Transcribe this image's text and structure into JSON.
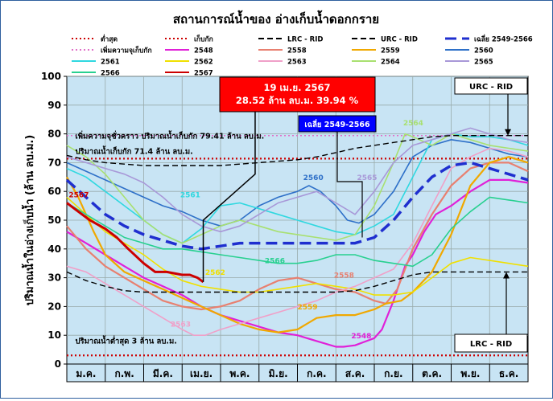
{
  "chart_data": {
    "type": "line",
    "title": "สถานการณ์น้ำของ อ่างเก็บน้ำดอกกราย",
    "ylabel": "ปริมาณน้ำในอ่างเก็บน้ำ (ล้าน ลบ.ม.)",
    "xlabel": "",
    "categories": [
      "ม.ค.",
      "ก.พ.",
      "มี.ค.",
      "เม.ย.",
      "พ.ค.",
      "มิ.ย.",
      "ก.ค.",
      "ส.ค.",
      "ก.ย.",
      "ต.ค.",
      "พ.ย.",
      "ธ.ค."
    ],
    "x_range": [
      0,
      12
    ],
    "ylim": [
      0,
      100
    ],
    "yticks": [
      "0",
      "10",
      "20",
      "30",
      "40",
      "50",
      "60",
      "70",
      "80",
      "90",
      "100"
    ],
    "grid": true,
    "legend_position": "top",
    "legend": [
      {
        "label": "ต่ำสุด",
        "color": "#cc0000",
        "style": "dotted"
      },
      {
        "label": "เก็บกัก",
        "color": "#cc0000",
        "style": "dotted"
      },
      {
        "label": "LRC - RID",
        "color": "#000000",
        "style": "dashed"
      },
      {
        "label": "URC - RID",
        "color": "#000000",
        "style": "dashed"
      },
      {
        "label": "เฉลี่ย 2549-2566",
        "color": "#1f2fcf",
        "style": "longdash"
      },
      {
        "label": "เพิ่มความจุเก็บกัก",
        "color": "#e070c8",
        "style": "dotted"
      },
      {
        "label": "2548",
        "color": "#e020d8",
        "style": "solid"
      },
      {
        "label": "2558",
        "color": "#e88070",
        "style": "solid"
      },
      {
        "label": "2559",
        "color": "#f0a800",
        "style": "solid"
      },
      {
        "label": "2560",
        "color": "#2e70c8",
        "style": "solid"
      },
      {
        "label": "2561",
        "color": "#30d8e0",
        "style": "solid"
      },
      {
        "label": "2562",
        "color": "#f0e000",
        "style": "solid"
      },
      {
        "label": "2563",
        "color": "#f0a0c8",
        "style": "solid"
      },
      {
        "label": "2564",
        "color": "#a8e070",
        "style": "solid"
      },
      {
        "label": "2565",
        "color": "#a898d8",
        "style": "solid"
      },
      {
        "label": "2566",
        "color": "#28d090",
        "style": "solid"
      },
      {
        "label": "2567",
        "color": "#cc0000",
        "style": "solid"
      }
    ],
    "reference_lines": {
      "min": 3,
      "storage": 71.4,
      "increased_storage": 79.41
    },
    "series": [
      {
        "name": "2548",
        "x": [
          0,
          0.5,
          1,
          1.5,
          2,
          2.5,
          3,
          3.5,
          4,
          4.5,
          5,
          5.5,
          6,
          6.5,
          7,
          7.2,
          7.5,
          7.8,
          8,
          8.2,
          8.5,
          8.8,
          9,
          9.3,
          9.6,
          10,
          10.5,
          11,
          11.5,
          12
        ],
        "y": [
          46,
          42,
          38,
          34,
          30,
          27,
          24,
          20,
          17,
          15,
          13,
          11,
          10,
          8,
          6,
          6,
          6.5,
          8,
          9,
          12,
          22,
          34,
          38,
          46,
          52,
          55,
          60,
          64,
          64,
          63
        ]
      },
      {
        "name": "2558",
        "x": [
          0,
          0.5,
          1,
          1.5,
          2,
          2.5,
          3,
          3.5,
          4,
          4.5,
          5,
          5.5,
          6,
          6.5,
          7,
          7.5,
          8,
          8.3,
          8.6,
          9,
          9.5,
          10,
          10.5,
          11,
          11.5,
          12
        ],
        "y": [
          48,
          40,
          34,
          30,
          26,
          22,
          20,
          19,
          20,
          22,
          26,
          29,
          30,
          28,
          26,
          25,
          22,
          21,
          26,
          40,
          52,
          62,
          68,
          70,
          70,
          67
        ]
      },
      {
        "name": "2559",
        "x": [
          0,
          0.3,
          0.7,
          1,
          1.5,
          2,
          2.5,
          3,
          3.5,
          4,
          4.5,
          5,
          5.5,
          6,
          6.5,
          7,
          7.5,
          8,
          8.3,
          8.7,
          9,
          9.5,
          10,
          10.5,
          11,
          11.5,
          12
        ],
        "y": [
          65,
          58,
          46,
          38,
          32,
          29,
          26,
          23,
          20,
          17,
          14,
          12,
          11,
          12,
          16,
          17,
          17,
          19,
          21,
          22,
          25,
          32,
          45,
          62,
          70,
          72,
          70
        ]
      },
      {
        "name": "2560",
        "x": [
          0,
          0.5,
          1,
          1.5,
          2,
          2.5,
          3,
          3.5,
          4,
          4.5,
          5,
          5.5,
          6,
          6.3,
          6.6,
          7,
          7.3,
          7.6,
          8,
          8.5,
          9,
          9.5,
          10,
          10.5,
          11,
          11.5,
          12
        ],
        "y": [
          70,
          67,
          64,
          61,
          58,
          55,
          53,
          50,
          48,
          50,
          55,
          58,
          60,
          62,
          60,
          55,
          50,
          49,
          52,
          60,
          72,
          76,
          78,
          77,
          75,
          73,
          72
        ]
      },
      {
        "name": "2561",
        "x": [
          0,
          0.5,
          1,
          1.5,
          2,
          2.5,
          3,
          3.5,
          4,
          4.5,
          5,
          5.5,
          6,
          6.5,
          7,
          7.5,
          8,
          8.5,
          9,
          9.5,
          10,
          10.5,
          11,
          11.5,
          12
        ],
        "y": [
          68,
          65,
          60,
          55,
          50,
          45,
          42,
          47,
          55,
          56,
          54,
          52,
          50,
          48,
          46,
          45,
          48,
          52,
          65,
          78,
          80,
          79,
          79,
          78,
          76
        ]
      },
      {
        "name": "2562",
        "x": [
          0,
          0.5,
          1,
          1.5,
          2,
          2.5,
          3,
          3.5,
          4,
          4.5,
          5,
          5.5,
          6,
          6.5,
          7,
          7.5,
          8,
          8.5,
          9,
          9.5,
          10,
          10.5,
          11,
          11.5,
          12
        ],
        "y": [
          58,
          52,
          46,
          42,
          38,
          33,
          29,
          27,
          26,
          25,
          25,
          26,
          27,
          28,
          27,
          26,
          24,
          24,
          25,
          30,
          35,
          37,
          36,
          35,
          34
        ]
      },
      {
        "name": "2563",
        "x": [
          0,
          0.5,
          1,
          1.5,
          2,
          2.5,
          3,
          3.3,
          3.6,
          4,
          4.5,
          5,
          5.5,
          6,
          6.5,
          7,
          7.5,
          8,
          8.5,
          9,
          9.5,
          10,
          10.5,
          11,
          11.5,
          12
        ],
        "y": [
          34,
          32,
          28,
          24,
          20,
          16,
          12,
          10,
          10,
          12,
          14,
          16,
          18,
          20,
          22,
          25,
          27,
          30,
          33,
          42,
          55,
          68,
          72,
          75,
          74,
          72
        ]
      },
      {
        "name": "2564",
        "x": [
          0,
          0.5,
          1,
          1.5,
          2,
          2.5,
          3,
          3.5,
          4,
          4.5,
          5,
          5.5,
          6,
          6.5,
          7,
          7.5,
          8,
          8.5,
          8.8,
          9,
          9.5,
          10,
          10.5,
          11,
          11.5,
          12
        ],
        "y": [
          76,
          72,
          66,
          58,
          50,
          45,
          42,
          45,
          48,
          50,
          48,
          46,
          45,
          44,
          43,
          45,
          55,
          70,
          80,
          79,
          76,
          80,
          78,
          76,
          75,
          74
        ]
      },
      {
        "name": "2565",
        "x": [
          0,
          0.5,
          1,
          1.5,
          2,
          2.5,
          3,
          3.5,
          4,
          4.5,
          5,
          5.5,
          6,
          6.5,
          7,
          7.5,
          8,
          8.5,
          9,
          9.5,
          10,
          10.5,
          11,
          11.5,
          12
        ],
        "y": [
          72,
          70,
          68,
          66,
          63,
          58,
          52,
          48,
          46,
          48,
          52,
          56,
          58,
          60,
          56,
          52,
          60,
          70,
          76,
          78,
          80,
          82,
          80,
          78,
          77
        ]
      },
      {
        "name": "2566",
        "x": [
          0,
          0.5,
          1,
          1.5,
          2,
          2.5,
          3,
          3.5,
          4,
          4.5,
          5,
          5.5,
          6,
          6.5,
          7,
          7.5,
          8,
          8.5,
          9,
          9.5,
          10,
          10.5,
          11,
          11.5,
          12
        ],
        "y": [
          56,
          52,
          48,
          44,
          42,
          40,
          40,
          39,
          38,
          37,
          36,
          35,
          35,
          36,
          38,
          38,
          36,
          35,
          34,
          38,
          47,
          53,
          58,
          57,
          56
        ]
      },
      {
        "name": "2567",
        "x": [
          0,
          0.3,
          0.6,
          1,
          1.3,
          1.6,
          2,
          2.3,
          2.6,
          3,
          3.2,
          3.4,
          3.55
        ],
        "y": [
          56,
          53,
          50,
          47,
          44,
          40,
          35,
          32,
          32,
          31,
          31,
          30,
          28.52
        ]
      },
      {
        "name": "เฉลี่ย 2549-2566",
        "x": [
          0,
          0.5,
          1,
          1.5,
          2,
          2.5,
          3,
          3.5,
          4,
          4.5,
          5,
          5.5,
          6,
          6.5,
          7,
          7.5,
          8,
          8.5,
          9,
          9.5,
          10,
          10.5,
          11,
          11.5,
          12
        ],
        "y": [
          64,
          58,
          52,
          48,
          45,
          43,
          41,
          40,
          41,
          42,
          42,
          42,
          42,
          42,
          42,
          42,
          44,
          50,
          58,
          65,
          69,
          70,
          68,
          66,
          64
        ]
      },
      {
        "name": "URC - RID",
        "x": [
          0,
          0.5,
          1,
          1.5,
          2,
          2.5,
          3,
          3.5,
          4,
          4.5,
          5,
          5.5,
          6,
          6.5,
          7,
          7.5,
          8,
          8.5,
          9,
          9.5,
          10,
          10.5,
          11,
          11.5,
          12
        ],
        "y": [
          72.5,
          71,
          70,
          69.5,
          69,
          69,
          69,
          69,
          69,
          69.5,
          70,
          70.5,
          71,
          72,
          73.5,
          75,
          76,
          77,
          78,
          79,
          79.4,
          79.4,
          79.4,
          79.4,
          79.4
        ]
      },
      {
        "name": "LRC - RID",
        "x": [
          0,
          0.5,
          1,
          1.5,
          2,
          2.5,
          3,
          3.5,
          4,
          4.5,
          5,
          5.5,
          6,
          6.5,
          7,
          7.5,
          8,
          8.5,
          9,
          9.5,
          10,
          10.5,
          11,
          11.5,
          12
        ],
        "y": [
          32,
          29,
          27,
          25.5,
          25,
          25,
          25,
          25,
          25,
          25,
          25,
          25,
          25,
          25,
          25,
          25.5,
          27,
          29,
          31,
          32,
          32,
          32,
          32,
          32,
          32
        ]
      }
    ],
    "annotations": {
      "current_box": {
        "date": "19 เม.ย. 2567",
        "value": "28.52 ล้าน ลบ.ม. 39.94 %"
      },
      "avg_box": "เฉลี่ย 2549-2566",
      "urc_box": "URC - RID",
      "lrc_box": "LRC - RID",
      "increased_storage_text": "เพิ่มความจุชั่วคราว ปริมาณน้ำเก็บกัก 79.41 ล้าน ลบ.ม.",
      "storage_text": "ปริมาณน้ำเก็บกัก 71.4 ล้าน ลบ.ม.",
      "min_text": "ปริมาณน้ำต่ำสุด 3 ล้าน ลบ.ม.",
      "series_labels": [
        {
          "text": "2567",
          "color": "#cc0000",
          "x": 0.05,
          "y": 58
        },
        {
          "text": "2561",
          "color": "#30d8e0",
          "x": 2.95,
          "y": 58
        },
        {
          "text": "2560",
          "color": "#2e70c8",
          "x": 6.15,
          "y": 64
        },
        {
          "text": "2565",
          "color": "#a898d8",
          "x": 7.55,
          "y": 64
        },
        {
          "text": "2564",
          "color": "#a8e070",
          "x": 8.75,
          "y": 83
        },
        {
          "text": "2566",
          "color": "#28d090",
          "x": 5.15,
          "y": 35
        },
        {
          "text": "2562",
          "color": "#f0e000",
          "x": 3.6,
          "y": 31
        },
        {
          "text": "2558",
          "color": "#e88070",
          "x": 6.95,
          "y": 30
        },
        {
          "text": "2559",
          "color": "#f0a800",
          "x": 6.0,
          "y": 19
        },
        {
          "text": "2563",
          "color": "#f0a0c8",
          "x": 2.7,
          "y": 13
        },
        {
          "text": "2548",
          "color": "#e020d8",
          "x": 7.4,
          "y": 9
        }
      ]
    }
  }
}
